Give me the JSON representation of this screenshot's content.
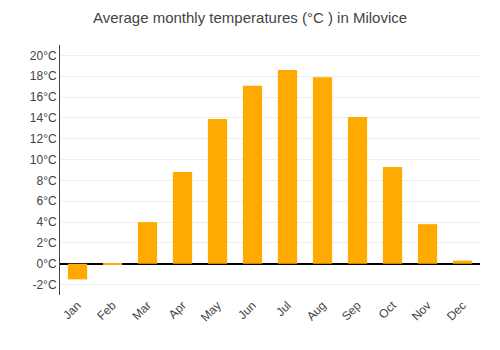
{
  "chart_data": {
    "type": "bar",
    "title": "Average monthly temperatures (°C ) in Milovice",
    "categories": [
      "Jan",
      "Feb",
      "Mar",
      "Apr",
      "May",
      "Jun",
      "Jul",
      "Aug",
      "Sep",
      "Oct",
      "Nov",
      "Dec"
    ],
    "values": [
      -1.5,
      -0.1,
      4.0,
      8.8,
      13.9,
      17.1,
      18.6,
      17.9,
      14.1,
      9.3,
      3.8,
      0.3
    ],
    "color": "#FFAA00",
    "ylim": [
      -3,
      21
    ],
    "yticks": [
      {
        "value": -2,
        "label": "-2°C"
      },
      {
        "value": 0,
        "label": "0°C"
      },
      {
        "value": 2,
        "label": "2°C"
      },
      {
        "value": 4,
        "label": "4°C"
      },
      {
        "value": 6,
        "label": "6°C"
      },
      {
        "value": 8,
        "label": "8°C"
      },
      {
        "value": 10,
        "label": "10°C"
      },
      {
        "value": 12,
        "label": "12°C"
      },
      {
        "value": 14,
        "label": "14°C"
      },
      {
        "value": 16,
        "label": "16°C"
      },
      {
        "value": 18,
        "label": "18°C"
      },
      {
        "value": 20,
        "label": "20°C"
      }
    ],
    "grid": true
  }
}
